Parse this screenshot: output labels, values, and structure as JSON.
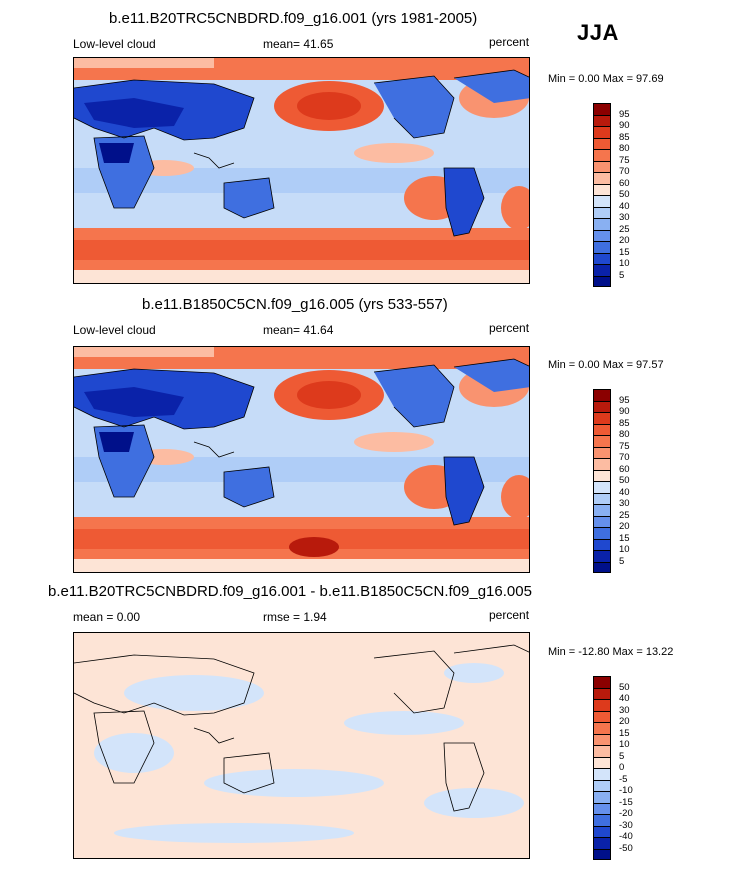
{
  "season": "JJA",
  "panels": [
    {
      "id": "p1",
      "title": "b.e11.B20TRC5CNBDRD.f09_g16.001 (yrs 1981-2005)",
      "left_label": "Low-level cloud",
      "mean_label": "mean=  41.65",
      "units": "percent",
      "minmax": "Min =   0.00 Max =  97.69",
      "colorbar": {
        "labels": [
          "95",
          "90",
          "85",
          "80",
          "75",
          "70",
          "60",
          "50",
          "40",
          "30",
          "25",
          "20",
          "15",
          "10",
          "5"
        ],
        "colors": [
          "#8b0000",
          "#b81a0c",
          "#dd3a1c",
          "#ee5a34",
          "#f5754d",
          "#f99370",
          "#fcbca2",
          "#fde4d6",
          "#d3e4fa",
          "#afcdf7",
          "#89b0f2",
          "#6590ec",
          "#3f6fe0",
          "#1f48cf",
          "#0a22a9",
          "#00108a"
        ]
      }
    },
    {
      "id": "p2",
      "title": "b.e11.B1850C5CN.f09_g16.005 (yrs 533-557)",
      "left_label": "Low-level cloud",
      "mean_label": "mean=  41.64",
      "units": "percent",
      "minmax": "Min =   0.00 Max =  97.57",
      "colorbar": {
        "labels": [
          "95",
          "90",
          "85",
          "80",
          "75",
          "70",
          "60",
          "50",
          "40",
          "30",
          "25",
          "20",
          "15",
          "10",
          "5"
        ],
        "colors": [
          "#8b0000",
          "#b81a0c",
          "#dd3a1c",
          "#ee5a34",
          "#f5754d",
          "#f99370",
          "#fcbca2",
          "#fde4d6",
          "#d3e4fa",
          "#afcdf7",
          "#89b0f2",
          "#6590ec",
          "#3f6fe0",
          "#1f48cf",
          "#0a22a9",
          "#00108a"
        ]
      }
    },
    {
      "id": "p3",
      "title": "b.e11.B20TRC5CNBDRD.f09_g16.001 - b.e11.B1850C5CN.f09_g16.005",
      "left_label": "mean =   0.00",
      "mean_label": "rmse =   1.94",
      "units": "percent",
      "minmax": "Min = -12.80 Max =  13.22",
      "colorbar": {
        "labels": [
          "50",
          "40",
          "30",
          "20",
          "15",
          "10",
          "5",
          "0",
          "-5",
          "-10",
          "-15",
          "-20",
          "-30",
          "-40",
          "-50"
        ],
        "colors": [
          "#8b0000",
          "#b81a0c",
          "#dd3a1c",
          "#ee5a34",
          "#f5754d",
          "#f99370",
          "#fcbca2",
          "#fde4d6",
          "#d3e4fa",
          "#afcdf7",
          "#89b0f2",
          "#6590ec",
          "#3f6fe0",
          "#1f48cf",
          "#0a22a9",
          "#00108a"
        ]
      }
    }
  ],
  "chart_data": [
    {
      "type": "heatmap",
      "title": "b.e11.B20TRC5CNBDRD.f09_g16.001 (yrs 1981-2005)",
      "variable": "Low-level cloud",
      "units": "percent",
      "mean": 41.65,
      "min": 0.0,
      "max": 97.69,
      "contour_levels": [
        5,
        10,
        15,
        20,
        25,
        30,
        40,
        50,
        60,
        70,
        75,
        80,
        85,
        90,
        95
      ],
      "description_regions": {
        "southern_ocean": "high (80-95)",
        "north_pacific": "high (80-90)",
        "sahara_asia_interior": "low (0-10)",
        "eastern_subtropical_oceans": "high (70-85)"
      }
    },
    {
      "type": "heatmap",
      "title": "b.e11.B1850C5CN.f09_g16.005 (yrs 533-557)",
      "variable": "Low-level cloud",
      "units": "percent",
      "mean": 41.64,
      "min": 0.0,
      "max": 97.57,
      "contour_levels": [
        5,
        10,
        15,
        20,
        25,
        30,
        40,
        50,
        60,
        70,
        75,
        80,
        85,
        90,
        95
      ]
    },
    {
      "type": "heatmap",
      "title": "b.e11.B20TRC5CNBDRD.f09_g16.001 - b.e11.B1850C5CN.f09_g16.005",
      "units": "percent",
      "mean": 0.0,
      "rmse": 1.94,
      "min": -12.8,
      "max": 13.22,
      "contour_levels": [
        -50,
        -40,
        -30,
        -20,
        -15,
        -10,
        -5,
        0,
        5,
        10,
        15,
        20,
        30,
        40,
        50
      ]
    }
  ]
}
